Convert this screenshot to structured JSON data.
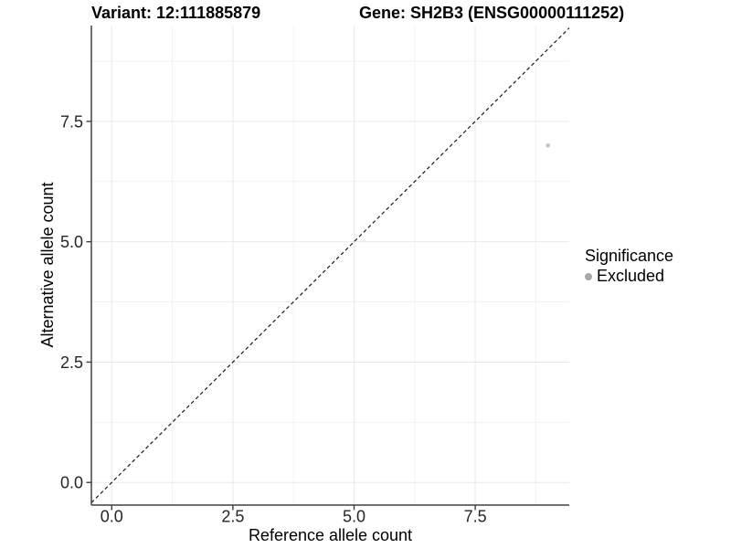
{
  "header": {
    "title_left": "Variant: 12:111885879",
    "title_right": "Gene: SH2B3 (ENSG00000111252)"
  },
  "chart_data": {
    "type": "scatter",
    "title": "Variant: 12:111885879    Gene: SH2B3 (ENSG00000111252)",
    "xlabel": "Reference allele count",
    "ylabel": "Alternative allele count",
    "x_ticks": {
      "values": [
        0,
        2.5,
        5,
        7.5
      ],
      "labels": [
        "0.0",
        "2.5",
        "5.0",
        "7.5"
      ]
    },
    "y_ticks": {
      "values": [
        0,
        2.5,
        5,
        7.5
      ],
      "labels": [
        "0.0",
        "2.5",
        "5.0",
        "7.5"
      ]
    },
    "xlim": [
      -0.42,
      9.44
    ],
    "ylim": [
      -0.47,
      9.49
    ],
    "grid": true,
    "points": [
      {
        "x": 9,
        "y": 7,
        "series": "Excluded",
        "color": "#c4c4c4"
      }
    ],
    "reference_line": {
      "type": "identity",
      "equation": "y = x",
      "style": "dashed",
      "color": "#1a1a1a"
    },
    "legend": {
      "title": "Significance",
      "position": "right",
      "entries": [
        {
          "label": "Excluded",
          "marker": "dot",
          "color": "#a8a8a8"
        }
      ]
    }
  },
  "colors": {
    "background": "#ffffff",
    "grid_major": "#e9e9e9",
    "grid_minor": "#f2f2f2",
    "axis_line": "#404040",
    "tick_text": "#262626"
  }
}
